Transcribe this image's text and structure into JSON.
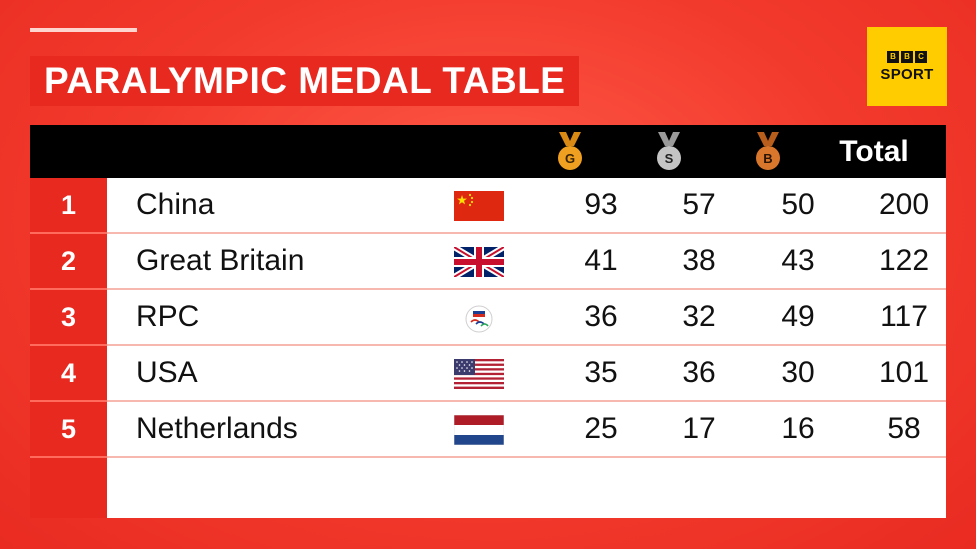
{
  "title": "PARALYMPIC MEDAL TABLE",
  "logo": {
    "blocks": [
      "B",
      "B",
      "C"
    ],
    "word": "SPORT"
  },
  "header": {
    "gold_letter": "G",
    "silver_letter": "S",
    "bronze_letter": "B",
    "total": "Total"
  },
  "rows": [
    {
      "rank": "1",
      "country": "China",
      "gold": "93",
      "silver": "57",
      "bronze": "50",
      "total": "200"
    },
    {
      "rank": "2",
      "country": "Great Britain",
      "gold": "41",
      "silver": "38",
      "bronze": "43",
      "total": "122"
    },
    {
      "rank": "3",
      "country": "RPC",
      "gold": "36",
      "silver": "32",
      "bronze": "49",
      "total": "117"
    },
    {
      "rank": "4",
      "country": "USA",
      "gold": "35",
      "silver": "36",
      "bronze": "30",
      "total": "101"
    },
    {
      "rank": "5",
      "country": "Netherlands",
      "gold": "25",
      "silver": "17",
      "bronze": "16",
      "total": "58"
    }
  ],
  "colors": {
    "background": "#f23a2c",
    "title_box": "#e8291f",
    "header_bar": "#000000",
    "logo_bg": "#ffcc00",
    "gold": "#f0a020",
    "silver": "#b9b9b9",
    "bronze": "#d8762c"
  }
}
